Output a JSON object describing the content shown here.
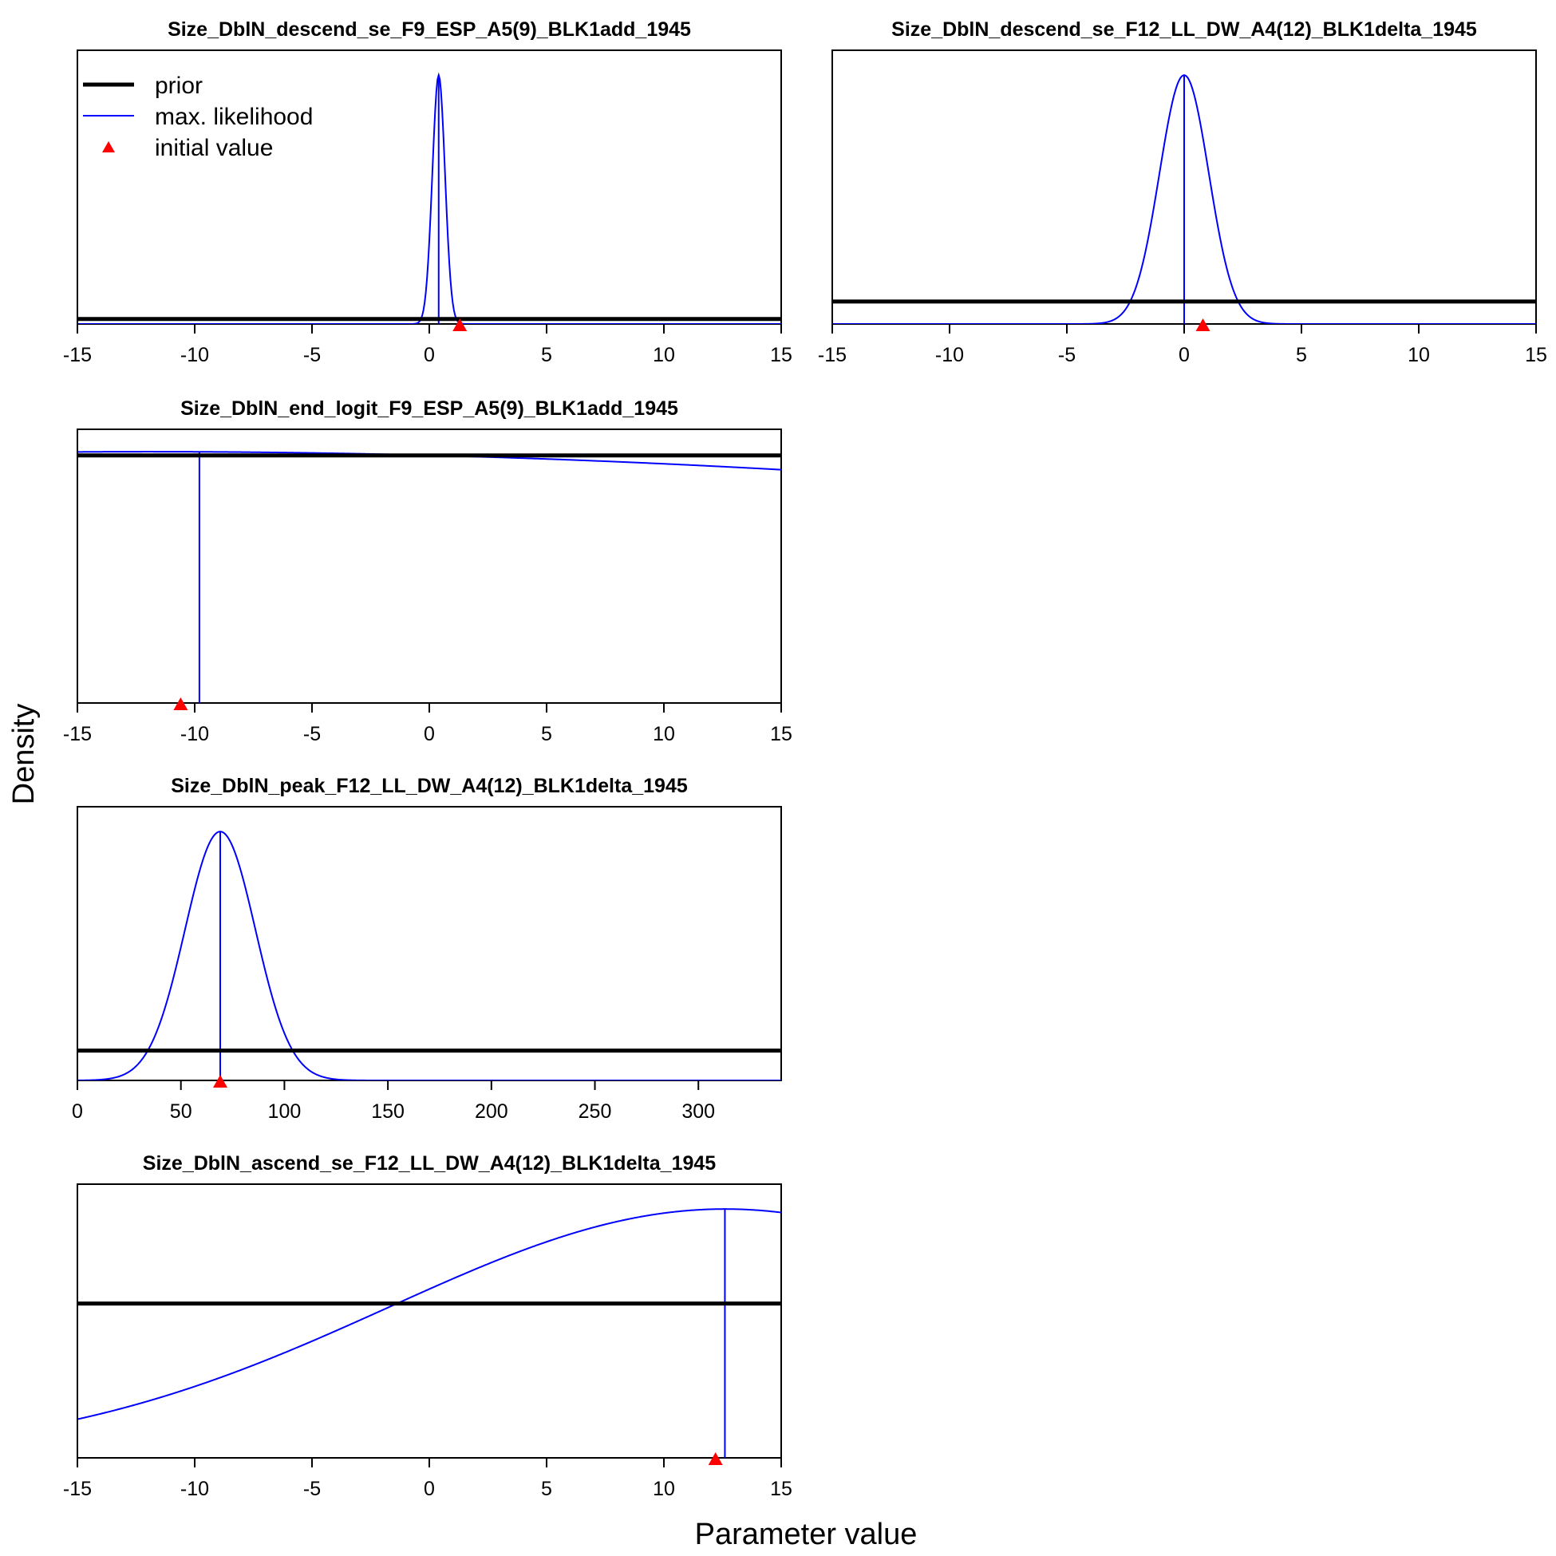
{
  "figure": {
    "xlabel": "Parameter value",
    "ylabel": "Density",
    "colors": {
      "prior": "#000000",
      "likelihood": "#0000ff",
      "initial": "#ff0000"
    }
  },
  "legend": {
    "placement": "top-left of first panel",
    "items": [
      {
        "label": "prior",
        "type": "line",
        "color": "#000000"
      },
      {
        "label": "max. likelihood",
        "type": "line",
        "color": "#0000ff"
      },
      {
        "label": "initial value",
        "type": "triangle",
        "color": "#ff0000"
      }
    ]
  },
  "chart_data": [
    {
      "type": "line",
      "title": "Size_DblN_descend_se_F9_ESP_A5(9)_BLK1add_1945",
      "xlim": [
        -15,
        15
      ],
      "xticks": [
        -15,
        -10,
        -5,
        0,
        5,
        10,
        15
      ],
      "ylim": [
        0,
        1.1
      ],
      "prior_level": 0.02,
      "likelihood": {
        "shape": "normal",
        "mean": 0.4,
        "sd": 0.27,
        "peak": 1
      },
      "mle": 0.4,
      "initial_value": 1.3
    },
    {
      "type": "line",
      "title": "Size_DblN_descend_se_F12_LL_DW_A4(12)_BLK1delta_1945",
      "xlim": [
        -15,
        15
      ],
      "xticks": [
        -15,
        -10,
        -5,
        0,
        5,
        10,
        15
      ],
      "ylim": [
        0,
        1.1
      ],
      "prior_level": 0.09,
      "likelihood": {
        "shape": "normal",
        "mean": 0,
        "sd": 1.05,
        "peak": 1
      },
      "mle": 0,
      "initial_value": 0.8
    },
    {
      "type": "line",
      "title": "Size_DblN_end_logit_F9_ESP_A5(9)_BLK1add_1945",
      "xlim": [
        -15,
        15
      ],
      "xticks": [
        -15,
        -10,
        -5,
        0,
        5,
        10,
        15
      ],
      "ylim": [
        0,
        1.1
      ],
      "prior_level": 0.995,
      "likelihood": {
        "shape": "normal",
        "mean": -12,
        "sd": 70,
        "peak": 1.01
      },
      "mle": -9.8,
      "initial_value": -10.6
    },
    {
      "type": "line",
      "title": "Size_DblN_peak_F12_LL_DW_A4(12)_BLK1delta_1945",
      "xlim": [
        0,
        340
      ],
      "xticks": [
        0,
        50,
        100,
        150,
        200,
        250,
        300
      ],
      "ylim": [
        0,
        1.1
      ],
      "prior_level": 0.12,
      "likelihood": {
        "shape": "normal",
        "mean": 69,
        "sd": 17,
        "peak": 1
      },
      "mle": 69,
      "initial_value": 69
    },
    {
      "type": "line",
      "title": "Size_DblN_ascend_se_F12_LL_DW_A4(12)_BLK1delta_1945",
      "xlim": [
        -15,
        15
      ],
      "xticks": [
        -15,
        -10,
        -5,
        0,
        5,
        10,
        15
      ],
      "ylim": [
        0,
        1.1
      ],
      "prior_level": 0.62,
      "likelihood": {
        "shape": "normal",
        "mean": 12.6,
        "sd": 14.3,
        "peak": 1
      },
      "mle": 12.6,
      "initial_value": 12.2
    }
  ]
}
